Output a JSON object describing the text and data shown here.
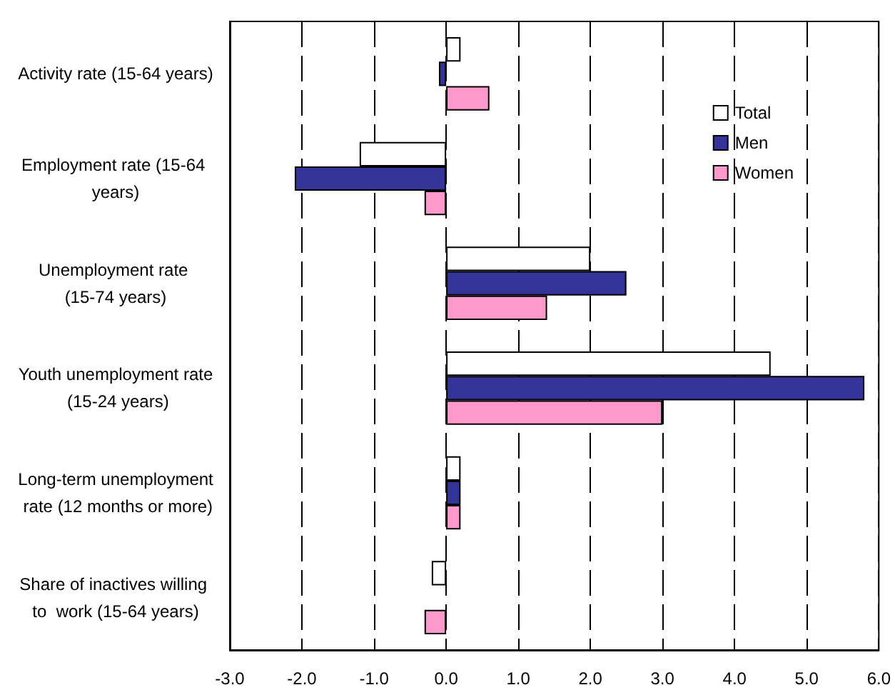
{
  "chart_data": {
    "type": "bar",
    "orientation": "horizontal",
    "categories": [
      "Activity rate (15-64 years)",
      "Employment rate (15-64 years)",
      "Unemployment rate (15-74 years)",
      "Youth unemployment rate (15-24 years)",
      "Long-term unemployment rate (12 months or more)",
      "Share of inactives willing to  work (15-64 years)"
    ],
    "series": [
      {
        "name": "Total",
        "color": "#ffffff",
        "values": [
          0.2,
          -1.2,
          2.0,
          4.5,
          0.2,
          -0.2
        ]
      },
      {
        "name": "Men",
        "color": "#333399",
        "values": [
          -0.1,
          -2.1,
          2.5,
          5.8,
          0.2,
          null
        ]
      },
      {
        "name": "Women",
        "color": "#ff99cc",
        "values": [
          0.6,
          -0.3,
          1.4,
          3.0,
          0.2,
          -0.3
        ]
      }
    ],
    "xlim": [
      -3,
      6
    ],
    "xticks": [
      {
        "value": -3,
        "label": "-3.0"
      },
      {
        "value": -2,
        "label": "-2.0"
      },
      {
        "value": -1,
        "label": "-1.0"
      },
      {
        "value": 0,
        "label": "0.0"
      },
      {
        "value": 1,
        "label": "1.0"
      },
      {
        "value": 2,
        "label": "2.0"
      },
      {
        "value": 3,
        "label": "3.0"
      },
      {
        "value": 4,
        "label": "4.0"
      },
      {
        "value": 5,
        "label": "5.0"
      },
      {
        "value": 6,
        "label": "6.0"
      }
    ],
    "grid": "x",
    "legend": "top right"
  }
}
